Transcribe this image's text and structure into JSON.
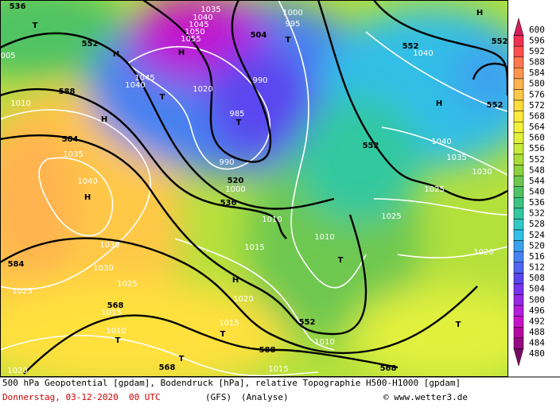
{
  "map_labels": [
    "536",
    "T",
    "552",
    "H",
    "005",
    "588",
    "1010",
    "H",
    "584",
    "1035",
    "1040",
    "H",
    "1035",
    "1030",
    "584",
    "1025",
    "1025",
    "568",
    "1015",
    "1010",
    "T",
    "T",
    "568",
    "1020",
    "1035",
    "1040",
    "1045",
    "1050",
    "1055",
    "H",
    "504",
    "1020",
    "T",
    "990",
    "985",
    "T",
    "990",
    "520",
    "1000",
    "536",
    "1000",
    "995",
    "T",
    "552",
    "1040",
    "H",
    "552",
    "552",
    "H",
    "552",
    "1040",
    "1035",
    "1030",
    "1025",
    "1010",
    "1025",
    "1015",
    "1010",
    "T",
    "H",
    "1020",
    "1020",
    "552",
    "1015",
    "T",
    "1010",
    "588",
    "T",
    "1015",
    "568",
    "1045",
    "1040"
  ],
  "legend": [
    {
      "label": "600",
      "color": "#d21e5a"
    },
    {
      "label": "596",
      "color": "#f03250"
    },
    {
      "label": "592",
      "color": "#ff5050"
    },
    {
      "label": "588",
      "color": "#ff7850"
    },
    {
      "label": "584",
      "color": "#ff9650"
    },
    {
      "label": "580",
      "color": "#ffb450"
    },
    {
      "label": "576",
      "color": "#ffc846"
    },
    {
      "label": "572",
      "color": "#ffdc3c"
    },
    {
      "label": "568",
      "color": "#ffeb3c"
    },
    {
      "label": "564",
      "color": "#f5f03c"
    },
    {
      "label": "560",
      "color": "#e1f03c"
    },
    {
      "label": "556",
      "color": "#c8eb3c"
    },
    {
      "label": "552",
      "color": "#aadc3c"
    },
    {
      "label": "548",
      "color": "#8cd23c"
    },
    {
      "label": "544",
      "color": "#6ec850"
    },
    {
      "label": "540",
      "color": "#50c364"
    },
    {
      "label": "536",
      "color": "#3cc382"
    },
    {
      "label": "532",
      "color": "#32c8a0"
    },
    {
      "label": "528",
      "color": "#32c8c8"
    },
    {
      "label": "524",
      "color": "#32bee6"
    },
    {
      "label": "520",
      "color": "#3ca0f0"
    },
    {
      "label": "516",
      "color": "#4682f0"
    },
    {
      "label": "512",
      "color": "#5064f0"
    },
    {
      "label": "508",
      "color": "#5a46f0"
    },
    {
      "label": "504",
      "color": "#7832f0"
    },
    {
      "label": "500",
      "color": "#9628e6"
    },
    {
      "label": "496",
      "color": "#b41edc"
    },
    {
      "label": "492",
      "color": "#c814c8"
    },
    {
      "label": "488",
      "color": "#b40aa0"
    },
    {
      "label": "484",
      "color": "#960a82"
    },
    {
      "label": "480",
      "color": "#780a64"
    }
  ],
  "footer": {
    "line1": "500 hPa Geopotential [gpdam], Bodendruck [hPa], relative Topographie H500-H1000 [gpdam]",
    "date": "Donnerstag, 03-12-2020  00 UTC",
    "model": "(GFS)",
    "run": "(Analyse)",
    "credit": "© www.wetter3.de"
  }
}
